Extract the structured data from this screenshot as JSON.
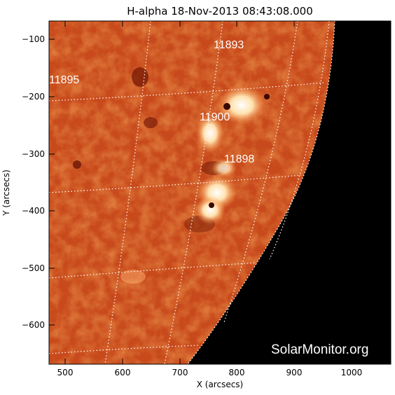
{
  "title": "H-alpha 18-Nov-2013 08:43:08.000",
  "x_axis": {
    "label": "X (arcsecs)",
    "ticks": [
      "500",
      "600",
      "700",
      "800",
      "900",
      "1000"
    ]
  },
  "y_axis": {
    "label": "Y (arcsecs)",
    "ticks": [
      "−100",
      "−200",
      "−300",
      "−400",
      "−500",
      "−600"
    ]
  },
  "active_regions": [
    "11893",
    "11895",
    "11900",
    "11898"
  ],
  "watermark": "SolarMonitor.org",
  "colors": {
    "disk": "#c84a1c",
    "disk_bright": "#ffffff",
    "space": "#000000",
    "grid": "#ffffff"
  }
}
